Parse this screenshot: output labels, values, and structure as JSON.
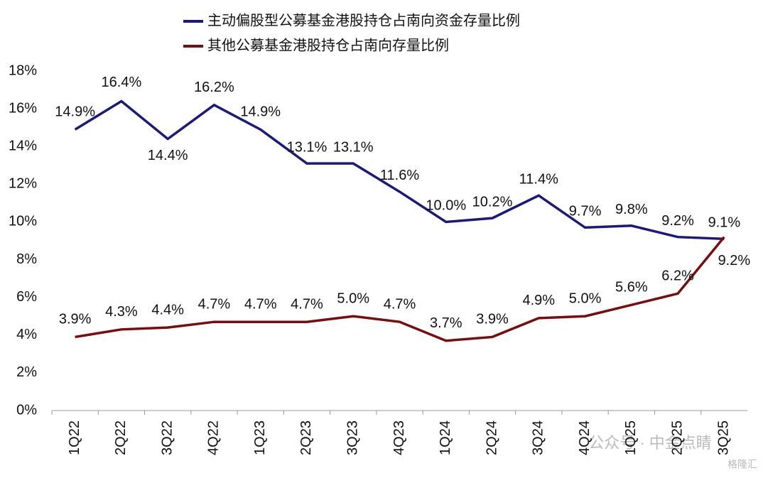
{
  "chart_data": {
    "type": "line",
    "categories": [
      "1Q22",
      "2Q22",
      "3Q22",
      "4Q22",
      "1Q23",
      "2Q23",
      "3Q23",
      "4Q23",
      "1Q24",
      "2Q24",
      "3Q24",
      "4Q24",
      "1Q25",
      "2Q25",
      "3Q25"
    ],
    "series": [
      {
        "name": "主动偏股型公募基金港股持仓占南向资金存量比例",
        "color": "#1a1a7e",
        "values": [
          14.9,
          16.4,
          14.4,
          16.2,
          14.9,
          13.1,
          13.1,
          11.6,
          10.0,
          10.2,
          11.4,
          9.7,
          9.8,
          9.2,
          9.1
        ],
        "value_labels": [
          "14.9%",
          "16.4%",
          "14.4%",
          "16.2%",
          "14.9%",
          "13.1%",
          "13.1%",
          "11.6%",
          "10.0%",
          "10.2%",
          "11.4%",
          "9.7%",
          "9.8%",
          "9.2%",
          "9.1%"
        ]
      },
      {
        "name": "其他公募基金港股持仓占南向存量比例",
        "color": "#7b0c0c",
        "values": [
          3.9,
          4.3,
          4.4,
          4.7,
          4.7,
          4.7,
          5.0,
          4.7,
          3.7,
          3.9,
          4.9,
          5.0,
          5.6,
          6.2,
          9.2
        ],
        "value_labels": [
          "3.9%",
          "4.3%",
          "4.4%",
          "4.7%",
          "4.7%",
          "4.7%",
          "5.0%",
          "4.7%",
          "3.7%",
          "3.9%",
          "4.9%",
          "5.0%",
          "5.6%",
          "6.2%",
          "9.2%"
        ]
      }
    ],
    "ylim": [
      0,
      18
    ],
    "yticks": [
      {
        "value": 0,
        "label": "0%"
      },
      {
        "value": 2,
        "label": "2%"
      },
      {
        "value": 4,
        "label": "4%"
      },
      {
        "value": 6,
        "label": "6%"
      },
      {
        "value": 8,
        "label": "8%"
      },
      {
        "value": 10,
        "label": "10%"
      },
      {
        "value": 12,
        "label": "12%"
      },
      {
        "value": 14,
        "label": "14%"
      },
      {
        "value": 16,
        "label": "16%"
      },
      {
        "value": 18,
        "label": "18%"
      }
    ],
    "grid": false,
    "watermark": "公众号 · 中金点睛",
    "logo_text": "格隆汇"
  }
}
